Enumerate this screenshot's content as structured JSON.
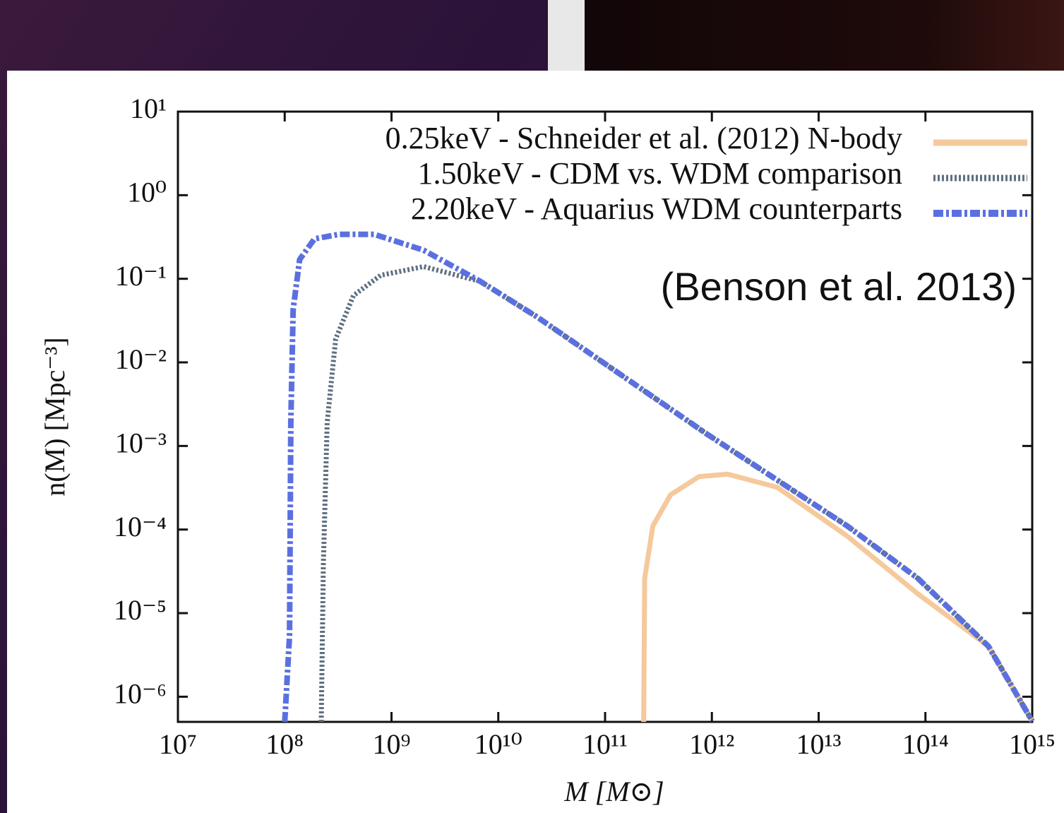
{
  "chart_data": {
    "type": "line",
    "xlabel": "M [M⊙]",
    "ylabel": "n(M) [Mpc⁻³]",
    "annotation": "(Benson et al. 2013)",
    "xscale": "log",
    "yscale": "log",
    "xlim": [
      10000000.0,
      1000000000000000.0
    ],
    "ylim": [
      5e-07,
      10
    ],
    "xticks": [
      {
        "value": 10000000.0,
        "label": "10⁷"
      },
      {
        "value": 100000000.0,
        "label": "10⁸"
      },
      {
        "value": 1000000000.0,
        "label": "10⁹"
      },
      {
        "value": 10000000000.0,
        "label": "10¹⁰"
      },
      {
        "value": 100000000000.0,
        "label": "10¹¹"
      },
      {
        "value": 1000000000000.0,
        "label": "10¹²"
      },
      {
        "value": 10000000000000.0,
        "label": "10¹³"
      },
      {
        "value": 100000000000000.0,
        "label": "10¹⁴"
      },
      {
        "value": 1000000000000000.0,
        "label": "10¹⁵"
      }
    ],
    "yticks": [
      {
        "value": 10,
        "label": "10¹"
      },
      {
        "value": 1,
        "label": "10⁰"
      },
      {
        "value": 0.1,
        "label": "10⁻¹"
      },
      {
        "value": 0.01,
        "label": "10⁻²"
      },
      {
        "value": 0.001,
        "label": "10⁻³"
      },
      {
        "value": 0.0001,
        "label": "10⁻⁴"
      },
      {
        "value": 1e-05,
        "label": "10⁻⁵"
      },
      {
        "value": 1e-06,
        "label": "10⁻⁶"
      }
    ],
    "legend": "upper right",
    "series": [
      {
        "name": "0.25keV - Schneider et al. (2012) N-body",
        "color": "#f5c99b",
        "line_style": "solid",
        "x": [
          230000000000.0,
          235000000000.0,
          280000000000.0,
          410000000000.0,
          760000000000.0,
          1400000000000.0,
          4100000000000.0,
          18600000000000.0,
          85000000000000.0,
          390000000000000.0,
          1000000000000000.0
        ],
        "values": [
          5e-07,
          2.6e-05,
          0.00011,
          0.00026,
          0.00043,
          0.00046,
          0.00032,
          8.3e-05,
          1.7e-05,
          4e-06,
          5.1e-07
        ]
      },
      {
        "name": "1.50keV - CDM vs. WDM comparison",
        "color": "#5f7080",
        "line_style": "dotted",
        "x": [
          220000000.0,
          230000000.0,
          250000000.0,
          300000000.0,
          440000000.0,
          790000000.0,
          2000000000.0,
          6800000000.0,
          23000000000.0,
          890000000000.0,
          18600000000000.0,
          85000000000000.0,
          390000000000000.0,
          1000000000000000.0
        ],
        "values": [
          5e-07,
          3.8e-05,
          0.0019,
          0.019,
          0.063,
          0.11,
          0.14,
          0.093,
          0.035,
          0.0014,
          0.00011,
          2.6e-05,
          4e-06,
          5.1e-07
        ]
      },
      {
        "name": "2.20keV - Aquarius WDM counterparts",
        "color": "#5b70e0",
        "line_style": "dashdot",
        "x": [
          100000000.0,
          111000000.0,
          114000000.0,
          120000000.0,
          138000000.0,
          190000000.0,
          320000000.0,
          690000000.0,
          2000000000.0,
          6800000000.0,
          23000000000.0,
          890000000000.0,
          18600000000000.0,
          85000000000000.0,
          390000000000000.0,
          1000000000000000.0
        ],
        "values": [
          5e-07,
          5.4e-06,
          0.0019,
          0.043,
          0.17,
          0.3,
          0.34,
          0.34,
          0.22,
          0.093,
          0.035,
          0.0014,
          0.00011,
          2.6e-05,
          4e-06,
          5.1e-07
        ]
      }
    ]
  }
}
